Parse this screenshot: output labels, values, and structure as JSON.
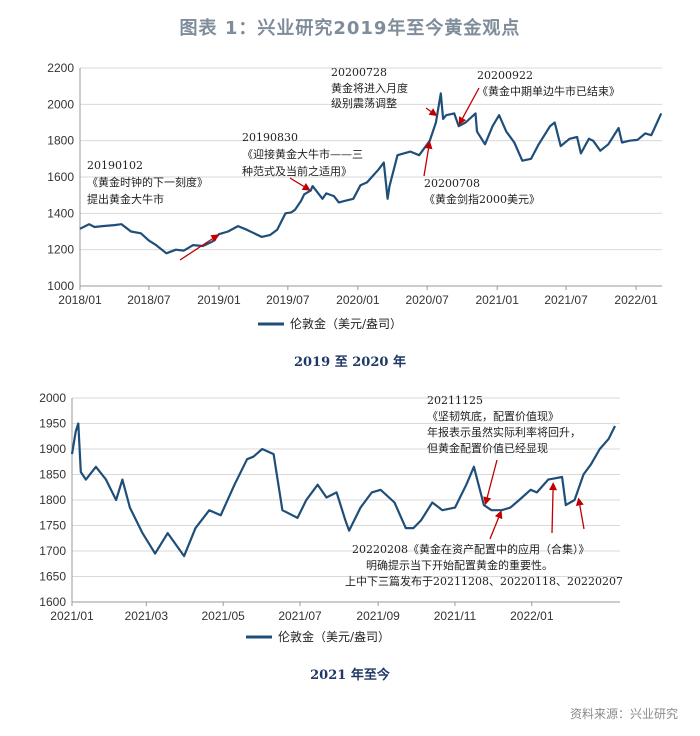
{
  "page_title": "图表 1：兴业研究2019年至今黄金观点",
  "source_note": "资料来源：兴业研究",
  "chart_data": [
    {
      "type": "line",
      "subtitle": "2019 至 2020 年",
      "legend": "伦敦金（美元/盎司）",
      "series_color": "#1f4e79",
      "x_tick_labels": [
        "2018/01",
        "2018/07",
        "2019/01",
        "2019/07",
        "2020/01",
        "2020/07",
        "2021/01",
        "2021/07",
        "2022/01"
      ],
      "y_tick_labels": [
        "1000",
        "1200",
        "1400",
        "1600",
        "1800",
        "2000",
        "2200"
      ],
      "ylim": [
        1000,
        2200
      ],
      "xlim": [
        "2018-01-01",
        "2022-03-10"
      ],
      "series": [
        {
          "x": [
            "2018-01-01",
            "2018-01-25",
            "2018-02-08",
            "2018-03-01",
            "2018-04-01",
            "2018-04-20",
            "2018-05-15",
            "2018-06-10",
            "2018-07-01",
            "2018-07-20",
            "2018-08-16",
            "2018-09-10",
            "2018-10-01",
            "2018-10-25",
            "2018-11-20",
            "2018-12-15",
            "2019-01-01",
            "2019-01-25",
            "2019-02-20",
            "2019-03-15",
            "2019-04-23",
            "2019-05-15",
            "2019-06-03",
            "2019-06-25",
            "2019-07-10",
            "2019-07-20",
            "2019-08-05",
            "2019-08-13",
            "2019-08-30",
            "2019-09-04",
            "2019-09-30",
            "2019-10-10",
            "2019-10-30",
            "2019-11-12",
            "2019-12-01",
            "2019-12-20",
            "2020-01-08",
            "2020-01-25",
            "2020-02-24",
            "2020-03-09",
            "2020-03-19",
            "2020-03-24",
            "2020-04-14",
            "2020-05-18",
            "2020-06-10",
            "2020-07-08",
            "2020-07-24",
            "2020-08-06",
            "2020-08-12",
            "2020-08-20",
            "2020-09-10",
            "2020-09-22",
            "2020-10-10",
            "2020-11-05",
            "2020-11-09",
            "2020-11-30",
            "2020-12-20",
            "2021-01-06",
            "2021-01-25",
            "2021-02-15",
            "2021-03-08",
            "2021-03-31",
            "2021-04-20",
            "2021-05-20",
            "2021-06-01",
            "2021-06-17",
            "2021-07-10",
            "2021-07-30",
            "2021-08-09",
            "2021-08-30",
            "2021-09-10",
            "2021-09-29",
            "2021-10-20",
            "2021-11-16",
            "2021-11-25",
            "2021-12-15",
            "2022-01-05",
            "2022-01-25",
            "2022-02-10",
            "2022-02-25",
            "2022-03-08"
          ],
          "values": [
            1315,
            1340,
            1325,
            1330,
            1335,
            1340,
            1300,
            1290,
            1250,
            1225,
            1180,
            1200,
            1195,
            1225,
            1220,
            1245,
            1285,
            1300,
            1330,
            1310,
            1270,
            1280,
            1310,
            1400,
            1405,
            1420,
            1470,
            1505,
            1525,
            1550,
            1480,
            1510,
            1495,
            1460,
            1470,
            1480,
            1555,
            1570,
            1640,
            1680,
            1480,
            1550,
            1720,
            1740,
            1720,
            1800,
            1900,
            2060,
            1920,
            1940,
            1950,
            1880,
            1900,
            1950,
            1850,
            1780,
            1880,
            1940,
            1850,
            1790,
            1690,
            1700,
            1780,
            1880,
            1900,
            1770,
            1810,
            1820,
            1730,
            1810,
            1800,
            1745,
            1780,
            1870,
            1790,
            1800,
            1805,
            1840,
            1830,
            1900,
            1950
          ]
        }
      ],
      "annotations": [
        {
          "date": "20190102",
          "lines": [
            "《黄金时钟的下一刻度》",
            "提出黄金大牛市"
          ]
        },
        {
          "date": "20190830",
          "lines": [
            "《迎接黄金大牛市——三",
            "种范式及当前之适用》"
          ]
        },
        {
          "date": "20200728",
          "lines": [
            "黄金将进入月度",
            "级别震荡调整"
          ]
        },
        {
          "date": "20200922",
          "lines": [
            "《黄金中期单边牛市已结束》"
          ]
        },
        {
          "date": "20200708",
          "lines": [
            "《黄金剑指2000美元》"
          ]
        }
      ]
    },
    {
      "type": "line",
      "subtitle": "2021 年至今",
      "legend": "伦敦金（美元/盎司）",
      "series_color": "#1f4e79",
      "x_tick_labels": [
        "2021/01",
        "2021/03",
        "2021/05",
        "2021/07",
        "2021/09",
        "2021/11",
        "2022/01"
      ],
      "y_tick_labels": [
        "1600",
        "1650",
        "1700",
        "1750",
        "1800",
        "1850",
        "1900",
        "1950",
        "2000"
      ],
      "ylim": [
        1600,
        2000
      ],
      "xlim": [
        "2021-01-01",
        "2022-03-12"
      ],
      "series": [
        {
          "x": [
            "2021-01-01",
            "2021-01-04",
            "2021-01-06",
            "2021-01-08",
            "2021-01-12",
            "2021-01-20",
            "2021-01-28",
            "2021-02-05",
            "2021-02-10",
            "2021-02-16",
            "2021-02-26",
            "2021-03-08",
            "2021-03-18",
            "2021-03-31",
            "2021-04-09",
            "2021-04-20",
            "2021-04-29",
            "2021-05-10",
            "2021-05-20",
            "2021-05-25",
            "2021-06-01",
            "2021-06-10",
            "2021-06-17",
            "2021-06-29",
            "2021-07-06",
            "2021-07-15",
            "2021-07-22",
            "2021-07-30",
            "2021-08-06",
            "2021-08-09",
            "2021-08-18",
            "2021-08-27",
            "2021-09-03",
            "2021-09-14",
            "2021-09-23",
            "2021-09-29",
            "2021-10-05",
            "2021-10-14",
            "2021-10-22",
            "2021-11-01",
            "2021-11-10",
            "2021-11-16",
            "2021-11-24",
            "2021-11-30",
            "2021-12-08",
            "2021-12-15",
            "2021-12-22",
            "2021-12-31",
            "2022-01-05",
            "2022-01-14",
            "2022-01-25",
            "2022-01-28",
            "2022-02-04",
            "2022-02-11",
            "2022-02-17",
            "2022-02-24",
            "2022-03-03",
            "2022-03-08"
          ],
          "values": [
            1890,
            1935,
            1950,
            1855,
            1840,
            1865,
            1840,
            1800,
            1840,
            1785,
            1735,
            1695,
            1735,
            1690,
            1745,
            1780,
            1770,
            1830,
            1880,
            1885,
            1900,
            1890,
            1780,
            1765,
            1800,
            1830,
            1805,
            1815,
            1760,
            1740,
            1785,
            1815,
            1820,
            1795,
            1745,
            1745,
            1760,
            1795,
            1780,
            1785,
            1830,
            1865,
            1790,
            1780,
            1780,
            1785,
            1800,
            1820,
            1815,
            1840,
            1845,
            1790,
            1800,
            1850,
            1870,
            1900,
            1920,
            1945
          ]
        }
      ],
      "annotations": [
        {
          "date": "20211125",
          "lines": [
            "《坚韧筑底，配置价值现》",
            "年报表示虽然实际利率将回升，",
            "但黄金配置价值已经显现"
          ]
        },
        {
          "date": "",
          "lines": [
            "20220208《黄金在资产配置中的应用（合集）》",
            "明确提示当下开始配置黄金的重要性。",
            "上中下三篇发布于20211208、20220118、20220207"
          ]
        }
      ]
    }
  ]
}
